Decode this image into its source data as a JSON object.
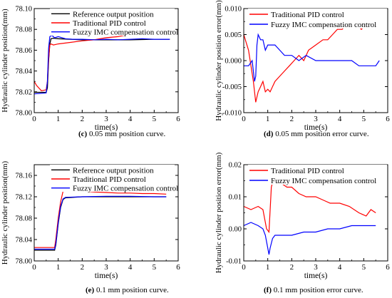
{
  "chart_data": [
    {
      "type": "line",
      "caption_label": "(c)",
      "caption_text": " 0.05 mm position curve.",
      "xlabel": "time(s)",
      "ylabel": "Hydraulic cylinder position(mm)",
      "xlim": [
        0,
        6
      ],
      "ylim": [
        78.0,
        78.1
      ],
      "xticks": [
        0,
        1,
        2,
        3,
        4,
        5,
        6
      ],
      "yticks": [
        78.0,
        78.02,
        78.04,
        78.06,
        78.08,
        78.1
      ],
      "ytick_labels": [
        "78.00",
        "78.02",
        "78.04",
        "78.06",
        "78.08",
        "78.10"
      ],
      "legend_position": "top-right",
      "series": [
        {
          "name": "Reference output position",
          "color": "#000000",
          "x": [
            0,
            0.5,
            0.55,
            0.6,
            0.65,
            0.7,
            0.8,
            1.0,
            2.0,
            3.0,
            4.0,
            5.0,
            5.65
          ],
          "y": [
            78.0195,
            78.0195,
            78.024,
            78.05,
            78.066,
            78.071,
            78.0715,
            78.071,
            78.07,
            78.07,
            78.07,
            78.0705,
            78.0705
          ]
        },
        {
          "name": "Traditional PID control",
          "color": "#ff0000",
          "x": [
            0,
            0.1,
            0.3,
            0.5,
            0.55,
            0.6,
            0.65,
            0.7,
            0.8,
            1.0,
            1.5,
            2.0,
            2.5,
            3.0,
            3.5,
            4.0,
            4.5,
            5.0,
            5.65
          ],
          "y": [
            78.03,
            78.026,
            78.021,
            78.022,
            78.03,
            78.052,
            78.065,
            78.066,
            78.065,
            78.066,
            78.0675,
            78.069,
            78.07,
            78.072,
            78.073,
            78.0755,
            78.077,
            78.077,
            78.078
          ]
        },
        {
          "name": "Fuzzy IMC compensation control",
          "color": "#0000ff",
          "x": [
            0,
            0.5,
            0.55,
            0.6,
            0.65,
            0.7,
            0.75,
            0.85,
            1.0,
            1.3,
            1.6,
            2.0,
            2.5,
            3.0,
            3.5,
            4.0,
            4.5,
            5.0,
            5.65
          ],
          "y": [
            78.018,
            78.019,
            78.03,
            78.062,
            78.073,
            78.074,
            78.074,
            78.072,
            78.073,
            78.071,
            78.0705,
            78.0705,
            78.07,
            78.0705,
            78.07,
            78.0705,
            78.071,
            78.0705,
            78.0705
          ]
        }
      ]
    },
    {
      "type": "line",
      "caption_label": "(d)",
      "caption_text": " 0.05 mm position error curve.",
      "xlabel": "time(s)",
      "ylabel": "Hydraulic cylinder position error(mm)",
      "xlim": [
        0,
        6
      ],
      "ylim": [
        -0.01,
        0.01
      ],
      "xticks": [
        0,
        1,
        2,
        3,
        4,
        5,
        6
      ],
      "yticks": [
        -0.01,
        -0.005,
        0.0,
        0.005,
        0.01
      ],
      "ytick_labels": [
        "-0.010",
        "-0.005",
        "0.000",
        "0.005",
        "0.010"
      ],
      "legend_position": "top-right",
      "series": [
        {
          "name": "Traditional PID control",
          "color": "#ff0000",
          "x": [
            0,
            0.2,
            0.4,
            0.5,
            0.6,
            0.7,
            0.8,
            0.9,
            1.0,
            1.1,
            1.3,
            1.5,
            1.7,
            1.9,
            2.1,
            2.3,
            2.5,
            2.7,
            3.0,
            3.3,
            3.5,
            3.7,
            3.9,
            4.1,
            4.3,
            4.5,
            4.7,
            4.9,
            5.1,
            5.3,
            5.5,
            5.65
          ],
          "y": [
            0.005,
            0.002,
            -0.004,
            -0.008,
            -0.006,
            -0.005,
            -0.004,
            -0.006,
            -0.0055,
            -0.006,
            -0.004,
            -0.003,
            -0.002,
            -0.001,
            0.0,
            0.001,
            0.0,
            0.002,
            0.003,
            0.004,
            0.004,
            0.005,
            0.006,
            0.006,
            0.007,
            0.008,
            0.007,
            0.006,
            0.007,
            0.007,
            0.007,
            0.007
          ]
        },
        {
          "name": "Fuzzy IMC compensation control",
          "color": "#0000ff",
          "x": [
            0,
            0.2,
            0.35,
            0.45,
            0.5,
            0.55,
            0.6,
            0.7,
            0.8,
            0.9,
            1.0,
            1.1,
            1.3,
            1.5,
            1.7,
            2.0,
            2.3,
            2.6,
            3.0,
            3.3,
            3.6,
            4.0,
            4.3,
            4.5,
            4.8,
            5.2,
            5.5,
            5.65
          ],
          "y": [
            -0.001,
            -0.001,
            0.0,
            -0.004,
            -0.003,
            0.003,
            0.005,
            0.004,
            0.004,
            0.002,
            0.003,
            0.003,
            0.003,
            0.002,
            0.001,
            0.001,
            0.0,
            0.001,
            0.0,
            0.0,
            0.0,
            0.0,
            0.0,
            0.0,
            -0.001,
            -0.001,
            -0.001,
            0.0
          ]
        }
      ]
    },
    {
      "type": "line",
      "caption_label": "(e)",
      "caption_text": " 0.1 mm position curve.",
      "xlabel": "time(s)",
      "ylabel": "Hydraulic cylinder position(mm)",
      "xlim": [
        0,
        6
      ],
      "ylim": [
        78.0,
        78.18
      ],
      "xticks": [
        0,
        1,
        2,
        3,
        4,
        5,
        6
      ],
      "yticks": [
        78.0,
        78.04,
        78.08,
        78.12,
        78.16
      ],
      "ytick_labels": [
        "78.00",
        "78.04",
        "78.08",
        "78.12",
        "78.16"
      ],
      "legend_position": "top-right",
      "series": [
        {
          "name": "Reference output position",
          "color": "#000000",
          "x": [
            0,
            0.85,
            0.9,
            1.0,
            1.1,
            1.2,
            1.3,
            2.0,
            3.0,
            4.0,
            5.0,
            5.5
          ],
          "y": [
            78.02,
            78.02,
            78.03,
            78.07,
            78.1,
            78.115,
            78.118,
            78.12,
            78.12,
            78.12,
            78.12,
            78.12
          ]
        },
        {
          "name": "Traditional PID control",
          "color": "#ff0000",
          "x": [
            0,
            0.85,
            0.9,
            1.0,
            1.1,
            1.2,
            1.3,
            1.5,
            2.0,
            2.5,
            3.0,
            3.5,
            4.0,
            4.5,
            5.0,
            5.5
          ],
          "y": [
            78.025,
            78.025,
            78.04,
            78.08,
            78.11,
            78.13,
            78.135,
            78.134,
            78.131,
            78.129,
            78.128,
            78.127,
            78.127,
            78.126,
            78.126,
            78.125
          ]
        },
        {
          "name": "Fuzzy IMC compensation control",
          "color": "#0000ff",
          "x": [
            0,
            0.85,
            0.9,
            1.0,
            1.1,
            1.2,
            1.3,
            2.0,
            3.0,
            4.0,
            5.0,
            5.5
          ],
          "y": [
            78.022,
            78.022,
            78.032,
            78.072,
            78.102,
            78.116,
            78.119,
            78.12,
            78.121,
            78.121,
            78.12,
            78.12
          ]
        }
      ]
    },
    {
      "type": "line",
      "caption_label": "(f)",
      "caption_text": " 0.1 mm position error curve.",
      "xlabel": "time(s)",
      "ylabel": "Hydraulic cylinder position error(mm)",
      "xlim": [
        0,
        6
      ],
      "ylim": [
        -0.01,
        0.02
      ],
      "xticks": [
        0,
        1,
        2,
        3,
        4,
        5,
        6
      ],
      "yticks": [
        -0.01,
        0.0,
        0.01,
        0.02
      ],
      "ytick_labels": [
        "-0.01",
        "0.00",
        "0.01",
        "0.02"
      ],
      "legend_position": "top-right",
      "series": [
        {
          "name": "Traditional PID control",
          "color": "#ff0000",
          "x": [
            0,
            0.3,
            0.6,
            0.8,
            0.95,
            1.05,
            1.15,
            1.25,
            1.4,
            1.6,
            1.8,
            2.0,
            2.3,
            2.6,
            3.0,
            3.3,
            3.6,
            4.0,
            4.4,
            4.8,
            5.1,
            5.3,
            5.5
          ],
          "y": [
            0.007,
            0.006,
            0.007,
            0.006,
            0.0,
            -0.001,
            0.013,
            0.016,
            0.015,
            0.014,
            0.013,
            0.013,
            0.011,
            0.01,
            0.01,
            0.009,
            0.008,
            0.008,
            0.007,
            0.005,
            0.004,
            0.006,
            0.005
          ]
        },
        {
          "name": "Fuzzy IMC compensation control",
          "color": "#0000ff",
          "x": [
            0,
            0.3,
            0.6,
            0.8,
            0.9,
            1.0,
            1.05,
            1.1,
            1.2,
            1.3,
            1.5,
            2.0,
            2.5,
            3.0,
            3.5,
            4.0,
            4.5,
            5.0,
            5.5
          ],
          "y": [
            0.001,
            0.002,
            0.001,
            0.0,
            -0.002,
            -0.006,
            -0.008,
            -0.006,
            -0.003,
            -0.002,
            -0.002,
            -0.002,
            -0.001,
            -0.001,
            0.0,
            0.0,
            0.001,
            0.001,
            0.001
          ]
        }
      ]
    }
  ]
}
